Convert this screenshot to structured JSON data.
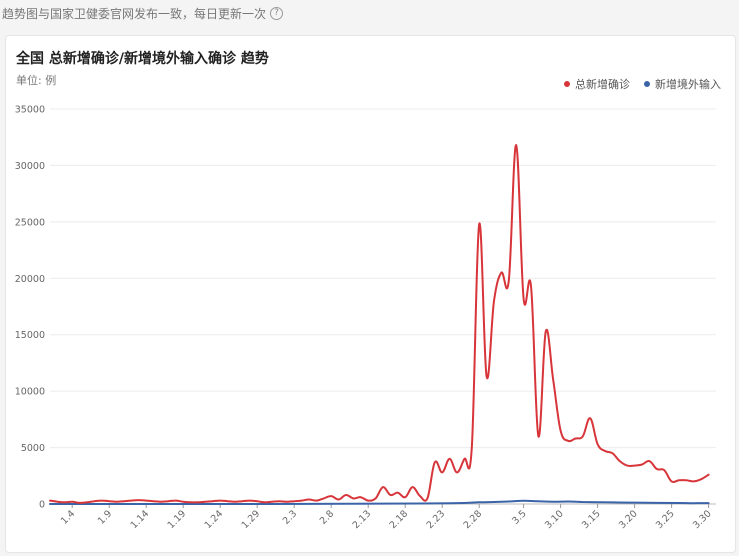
{
  "notice": {
    "text": "趋势图与国家卫健委官网发布一致，每日更新一次",
    "help_glyph": "?"
  },
  "card": {
    "title": "全国 总新增确诊/新增境外输入确诊 趋势",
    "unit": "单位: 例"
  },
  "colors": {
    "series_total": "#d7353a",
    "series_import": "#3b64a8",
    "grid": "#ececec",
    "axis": "#999999"
  },
  "chart_data": {
    "type": "line",
    "title": "全国 总新增确诊/新增境外输入确诊 趋势",
    "ylabel": "单位: 例",
    "xlabel": "",
    "ylim": [
      0,
      35000
    ],
    "yticks": [
      0,
      5000,
      10000,
      15000,
      20000,
      25000,
      30000,
      35000
    ],
    "grid": true,
    "legend_position": "top-right",
    "x_start": "1.1",
    "x_end": "3.31",
    "xtick_labels": [
      "1.4",
      "1.9",
      "1.14",
      "1.19",
      "1.24",
      "1.29",
      "2.3",
      "2.8",
      "2.13",
      "2.18",
      "2.23",
      "2.28",
      "3.5",
      "3.10",
      "3.15",
      "3.20",
      "3.25",
      "3.30"
    ],
    "series": [
      {
        "name": "总新增确诊",
        "color": "#d7353a",
        "points": [
          [
            "1.1",
            300
          ],
          [
            "1.2",
            200
          ],
          [
            "1.3",
            150
          ],
          [
            "1.4",
            200
          ],
          [
            "1.5",
            100
          ],
          [
            "1.6",
            150
          ],
          [
            "1.7",
            250
          ],
          [
            "1.8",
            300
          ],
          [
            "1.9",
            250
          ],
          [
            "1.10",
            200
          ],
          [
            "1.11",
            250
          ],
          [
            "1.12",
            300
          ],
          [
            "1.13",
            350
          ],
          [
            "1.14",
            300
          ],
          [
            "1.15",
            250
          ],
          [
            "1.16",
            200
          ],
          [
            "1.17",
            250
          ],
          [
            "1.18",
            300
          ],
          [
            "1.19",
            200
          ],
          [
            "1.20",
            150
          ],
          [
            "1.21",
            150
          ],
          [
            "1.22",
            200
          ],
          [
            "1.23",
            250
          ],
          [
            "1.24",
            300
          ],
          [
            "1.25",
            250
          ],
          [
            "1.26",
            200
          ],
          [
            "1.27",
            250
          ],
          [
            "1.28",
            300
          ],
          [
            "1.29",
            250
          ],
          [
            "1.30",
            150
          ],
          [
            "1.31",
            200
          ],
          [
            "2.1",
            250
          ],
          [
            "2.2",
            200
          ],
          [
            "2.3",
            250
          ],
          [
            "2.4",
            300
          ],
          [
            "2.5",
            400
          ],
          [
            "2.6",
            300
          ],
          [
            "2.7",
            500
          ],
          [
            "2.8",
            700
          ],
          [
            "2.9",
            400
          ],
          [
            "2.10",
            800
          ],
          [
            "2.11",
            500
          ],
          [
            "2.12",
            600
          ],
          [
            "2.13",
            300
          ],
          [
            "2.14",
            500
          ],
          [
            "2.15",
            1500
          ],
          [
            "2.16",
            800
          ],
          [
            "2.17",
            1000
          ],
          [
            "2.18",
            600
          ],
          [
            "2.19",
            1500
          ],
          [
            "2.20",
            700
          ],
          [
            "2.21",
            500
          ],
          [
            "2.22",
            3700
          ],
          [
            "2.23",
            2800
          ],
          [
            "2.24",
            4000
          ],
          [
            "2.25",
            2800
          ],
          [
            "2.26",
            4000
          ],
          [
            "2.27",
            5000
          ],
          [
            "2.28",
            24800
          ],
          [
            "2.29",
            11300
          ],
          [
            "3.1",
            18000
          ],
          [
            "3.2",
            20500
          ],
          [
            "3.3",
            19800
          ],
          [
            "3.4",
            31800
          ],
          [
            "3.5",
            18200
          ],
          [
            "3.6",
            19300
          ],
          [
            "3.7",
            6000
          ],
          [
            "3.8",
            15300
          ],
          [
            "3.9",
            11000
          ],
          [
            "3.10",
            6500
          ],
          [
            "3.11",
            5600
          ],
          [
            "3.12",
            5800
          ],
          [
            "3.13",
            6000
          ],
          [
            "3.14",
            7600
          ],
          [
            "3.15",
            5300
          ],
          [
            "3.16",
            4700
          ],
          [
            "3.17",
            4500
          ],
          [
            "3.18",
            3800
          ],
          [
            "3.19",
            3400
          ],
          [
            "3.20",
            3400
          ],
          [
            "3.21",
            3500
          ],
          [
            "3.22",
            3800
          ],
          [
            "3.23",
            3100
          ],
          [
            "3.24",
            3000
          ],
          [
            "3.25",
            2000
          ],
          [
            "3.26",
            2100
          ],
          [
            "3.27",
            2100
          ],
          [
            "3.28",
            2000
          ],
          [
            "3.29",
            2200
          ],
          [
            "3.30",
            2600
          ]
        ]
      },
      {
        "name": "新增境外输入",
        "color": "#3b64a8",
        "points": [
          [
            "1.1",
            0
          ],
          [
            "1.10",
            0
          ],
          [
            "1.20",
            0
          ],
          [
            "1.31",
            0
          ],
          [
            "2.10",
            20
          ],
          [
            "2.20",
            40
          ],
          [
            "2.25",
            80
          ],
          [
            "2.28",
            150
          ],
          [
            "3.1",
            180
          ],
          [
            "3.3",
            220
          ],
          [
            "3.5",
            280
          ],
          [
            "3.7",
            240
          ],
          [
            "3.9",
            200
          ],
          [
            "3.11",
            220
          ],
          [
            "3.13",
            180
          ],
          [
            "3.15",
            160
          ],
          [
            "3.17",
            140
          ],
          [
            "3.20",
            120
          ],
          [
            "3.23",
            100
          ],
          [
            "3.26",
            90
          ],
          [
            "3.28",
            70
          ],
          [
            "3.30",
            80
          ]
        ]
      }
    ]
  }
}
